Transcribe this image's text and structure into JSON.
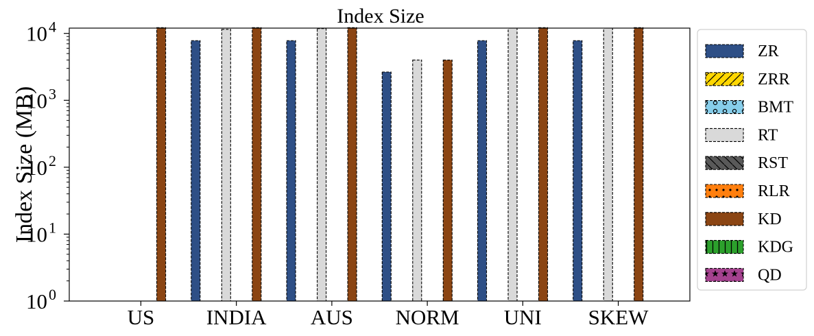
{
  "chart_data": {
    "type": "bar",
    "title": "Index Size",
    "xlabel": "",
    "ylabel": "Index Size (MB)",
    "yscale": "log",
    "ylim": [
      1,
      12000
    ],
    "yticks": [
      1,
      10,
      100,
      1000,
      10000
    ],
    "ytick_labels": [
      {
        "base": "10",
        "exp": "0"
      },
      {
        "base": "10",
        "exp": "1"
      },
      {
        "base": "10",
        "exp": "2"
      },
      {
        "base": "10",
        "exp": "3"
      },
      {
        "base": "10",
        "exp": "4"
      }
    ],
    "categories": [
      "US",
      "INDIA",
      "AUS",
      "NORM",
      "UNI",
      "SKEW"
    ],
    "legend_position": "outside-right",
    "series": [
      {
        "name": "ZR",
        "color": "#2e4f86",
        "hatch": "none",
        "values": [
          null,
          7800,
          7800,
          2650,
          7800,
          7800
        ]
      },
      {
        "name": "ZRR",
        "color": "#ffd700",
        "hatch": "slash",
        "values": [
          null,
          null,
          null,
          null,
          null,
          null
        ]
      },
      {
        "name": "BMT",
        "color": "#87ceeb",
        "hatch": "circle",
        "values": [
          null,
          null,
          null,
          null,
          null,
          null
        ]
      },
      {
        "name": "RT",
        "color": "#d9d9d9",
        "hatch": "none",
        "values": [
          null,
          11500,
          11800,
          4000,
          12000,
          12000
        ]
      },
      {
        "name": "RST",
        "color": "#595959",
        "hatch": "backslash",
        "values": [
          null,
          null,
          null,
          null,
          null,
          null
        ]
      },
      {
        "name": "RLR",
        "color": "#ff7f0e",
        "hatch": "dot",
        "values": [
          null,
          null,
          null,
          null,
          null,
          null
        ]
      },
      {
        "name": "KD",
        "color": "#8b4513",
        "hatch": "none",
        "values": [
          12200,
          12200,
          12200,
          4000,
          12200,
          12200
        ]
      },
      {
        "name": "KDG",
        "color": "#2ca02c",
        "hatch": "vertical",
        "values": [
          null,
          null,
          null,
          null,
          null,
          null
        ]
      },
      {
        "name": "QD",
        "color": "#a5428f",
        "hatch": "star",
        "values": [
          null,
          null,
          null,
          null,
          null,
          null
        ]
      }
    ]
  }
}
